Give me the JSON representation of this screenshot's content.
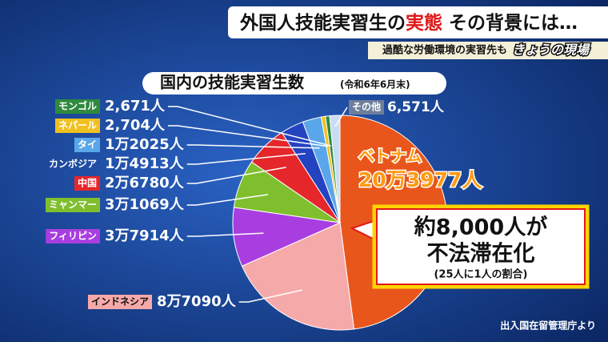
{
  "header": {
    "title_prefix": "外国人技能実習生の",
    "title_highlight": "実態",
    "title_suffix": "その背景には…",
    "subtitle": "過酷な労働環境の実習先も",
    "program": "きょうの現場"
  },
  "chart_data": {
    "type": "pie",
    "title": "国内の技能実習生数",
    "subtitle": "(令和6年6月末)",
    "categories": [
      "ベトナム",
      "インドネシア",
      "フィリピン",
      "ミャンマー",
      "中国",
      "カンボジア",
      "タイ",
      "ネパール",
      "モンゴル",
      "その他"
    ],
    "values": [
      203977,
      87090,
      37914,
      31069,
      26780,
      14913,
      12025,
      2704,
      2671,
      6571
    ],
    "value_labels": [
      "20万3977人",
      "8万7090人",
      "3万7914人",
      "3万1069人",
      "2万6780人",
      "1万4913人",
      "1万2025人",
      "2,704人",
      "2,671人",
      "6,571人"
    ],
    "colors": [
      "#e8561c",
      "#f6a9a9",
      "#a93ee0",
      "#7fbf2e",
      "#e5262a",
      "#2443c0",
      "#5aa6ea",
      "#f0c020",
      "#2f8a3e",
      "#c8dcf2"
    ],
    "annotations": [
      "約8,000人が",
      "不法滞在化",
      "(25人に1人の割合)"
    ],
    "source": "出入国在留管理庁より"
  }
}
